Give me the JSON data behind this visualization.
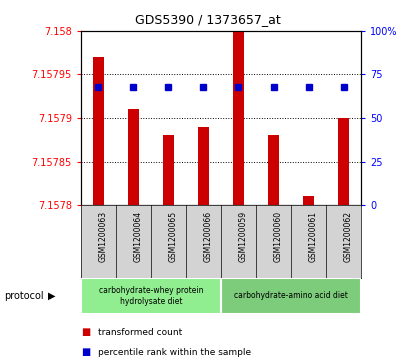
{
  "title": "GDS5390 / 1373657_at",
  "samples": [
    "GSM1200063",
    "GSM1200064",
    "GSM1200065",
    "GSM1200066",
    "GSM1200059",
    "GSM1200060",
    "GSM1200061",
    "GSM1200062"
  ],
  "transformed_counts": [
    7.15797,
    7.15791,
    7.15788,
    7.15789,
    7.158,
    7.15788,
    7.15781,
    7.1579
  ],
  "percentile_ranks": [
    68,
    68,
    68,
    68,
    68,
    68,
    68,
    68
  ],
  "y_min": 7.1578,
  "y_max": 7.158,
  "y_ticks": [
    7.1578,
    7.15785,
    7.1579,
    7.15795,
    7.158
  ],
  "y_tick_labels": [
    "7.1578",
    "7.15785",
    "7.1579",
    "7.15795",
    "7.158"
  ],
  "right_y_ticks": [
    0,
    25,
    50,
    75,
    100
  ],
  "right_y_labels": [
    "0",
    "25",
    "50",
    "75",
    "100%"
  ],
  "bar_color": "#cc0000",
  "dot_color": "#0000cc",
  "group1_label": "carbohydrate-whey protein\nhydrolysate diet",
  "group2_label": "carbohydrate-amino acid diet",
  "group1_color": "#90ee90",
  "group2_color": "#7ccc7c",
  "legend_bar_label": "transformed count",
  "legend_dot_label": "percentile rank within the sample",
  "protocol_label": "protocol",
  "bg_color_plot": "#ffffff",
  "bg_color_samples": "#d3d3d3"
}
